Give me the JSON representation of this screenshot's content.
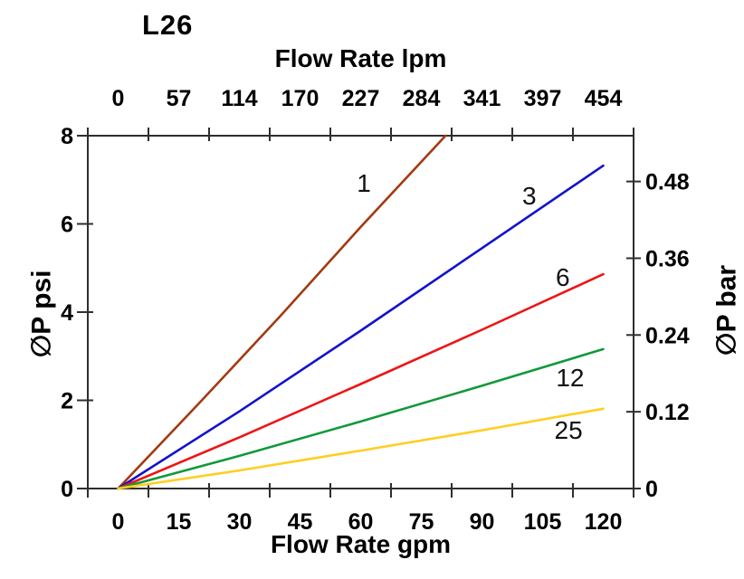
{
  "chart_data": {
    "type": "line",
    "title": "L26",
    "x_top_axis": {
      "label": "Flow Rate lpm",
      "ticks": [
        "0",
        "57",
        "114",
        "170",
        "227",
        "284",
        "341",
        "397",
        "454"
      ]
    },
    "x_bottom_axis": {
      "label": "Flow Rate gpm",
      "ticks": [
        "0",
        "15",
        "30",
        "45",
        "60",
        "75",
        "90",
        "105",
        "120"
      ],
      "range_gpm": [
        0,
        120
      ]
    },
    "y_left_axis": {
      "label": "∅P psi",
      "ticks": [
        "0",
        "2",
        "4",
        "6",
        "8"
      ],
      "range_psi": [
        0,
        8
      ]
    },
    "y_right_axis": {
      "label": "∅P bar",
      "ticks": [
        "0",
        "0.12",
        "0.24",
        "0.36",
        "0.48"
      ]
    },
    "axis_color": "#2e2e2e",
    "text_color": "#000000",
    "grid": false,
    "legend": "inline-labels",
    "series": [
      {
        "name": "1",
        "color": "#a23a10",
        "label_at": [
          60.8,
          6.93
        ],
        "points_gpm_psi": [
          [
            0,
            0
          ],
          [
            20,
            1.93
          ],
          [
            40,
            3.9
          ],
          [
            60,
            5.93
          ],
          [
            81,
            8.0
          ]
        ]
      },
      {
        "name": "3",
        "color": "#1212cd",
        "label_at": [
          101.7,
          6.65
        ],
        "points_gpm_psi": [
          [
            0,
            0
          ],
          [
            30,
            1.75
          ],
          [
            60,
            3.58
          ],
          [
            90,
            5.45
          ],
          [
            120,
            7.32
          ]
        ]
      },
      {
        "name": "6",
        "color": "#ed1515",
        "label_at": [
          110.0,
          4.8
        ],
        "points_gpm_psi": [
          [
            0,
            0
          ],
          [
            30,
            1.16
          ],
          [
            60,
            2.37
          ],
          [
            90,
            3.6
          ],
          [
            120,
            4.86
          ]
        ]
      },
      {
        "name": "12",
        "color": "#12993a",
        "label_at": [
          111.8,
          2.52
        ],
        "points_gpm_psi": [
          [
            0,
            0
          ],
          [
            30,
            0.74
          ],
          [
            60,
            1.52
          ],
          [
            90,
            2.33
          ],
          [
            120,
            3.16
          ]
        ]
      },
      {
        "name": "25",
        "color": "#ffce1f",
        "label_at": [
          111.4,
          1.33
        ],
        "points_gpm_psi": [
          [
            0,
            0
          ],
          [
            30,
            0.41
          ],
          [
            60,
            0.86
          ],
          [
            90,
            1.32
          ],
          [
            120,
            1.81
          ]
        ]
      }
    ]
  }
}
